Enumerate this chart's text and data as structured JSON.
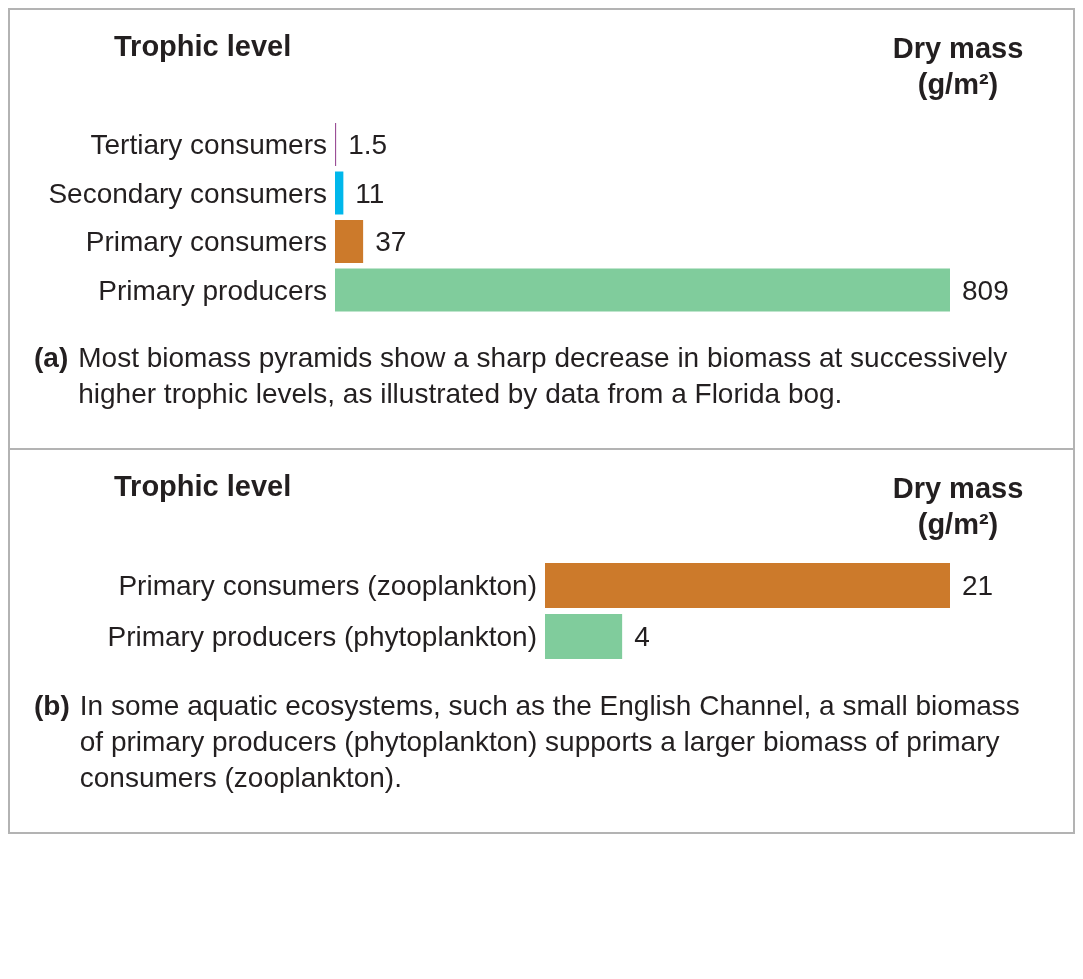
{
  "chart_data": [
    {
      "type": "bar",
      "orientation": "horizontal",
      "ylabel": "Trophic level",
      "xlabel": "Dry mass (g/m²)",
      "categories": [
        "Tertiary consumers",
        "Secondary consumers",
        "Primary consumers",
        "Primary producers"
      ],
      "values": [
        1.5,
        11,
        37,
        809
      ],
      "colors": [
        "#9b4f96",
        "#00b7eb",
        "#cc7a2b",
        "#80cc9c"
      ],
      "data_labels": true,
      "annotations": [
        "(a) Most biomass pyramids show a sharp decrease in biomass at successively higher trophic levels, as illustrated by data from a Florida bog."
      ]
    },
    {
      "type": "bar",
      "orientation": "horizontal",
      "ylabel": "Trophic level",
      "xlabel": "Dry mass (g/m²)",
      "categories": [
        "Primary consumers (zooplankton)",
        "Primary producers (phytoplankton)"
      ],
      "values": [
        21,
        4
      ],
      "colors": [
        "#cc7a2b",
        "#80cc9c"
      ],
      "data_labels": true,
      "annotations": [
        "(b) In some aquatic ecosystems, such as the English Channel, a small biomass of primary producers (phytoplankton) supports a larger biomass of primary consumers (zooplankton)."
      ]
    }
  ]
}
